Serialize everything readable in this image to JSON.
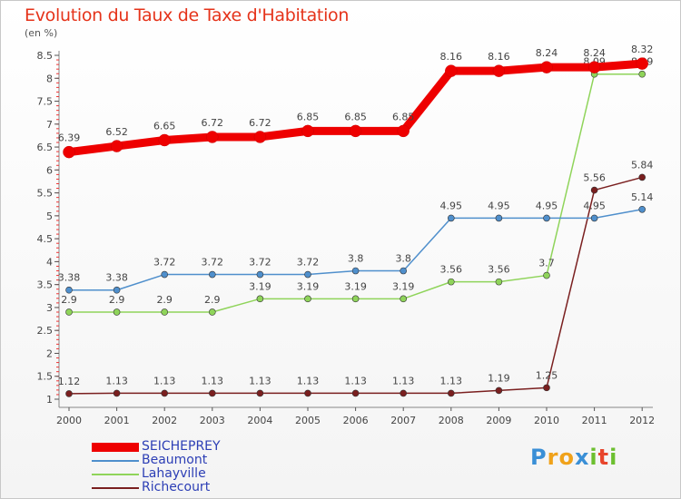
{
  "chart_data": {
    "type": "line",
    "title": "Evolution du Taux de Taxe d'Habitation",
    "unit_label": "(en %)",
    "x": [
      "2000",
      "2001",
      "2002",
      "2003",
      "2004",
      "2005",
      "2006",
      "2007",
      "2008",
      "2009",
      "2010",
      "2011",
      "2012"
    ],
    "y_ticks": [
      "1",
      "1.5",
      "2",
      "2.5",
      "3",
      "3.5",
      "4",
      "4.5",
      "5",
      "5.5",
      "6",
      "6.5",
      "7",
      "7.5",
      "8",
      "8.5"
    ],
    "ylim": [
      1,
      8.5
    ],
    "grid": false,
    "legend_position": "bottom-left",
    "series": [
      {
        "name": "SEICHEPREY",
        "color": "#ee0000",
        "values": [
          6.39,
          6.52,
          6.65,
          6.72,
          6.72,
          6.85,
          6.85,
          6.85,
          8.16,
          8.16,
          8.24,
          8.24,
          8.32
        ],
        "labels": [
          "6.39",
          "6.52",
          "6.65",
          "6.72",
          "6.72",
          "6.85",
          "6.85",
          "6.85",
          "8.16",
          "8.16",
          "8.24",
          "8.24",
          "8.32"
        ]
      },
      {
        "name": "Beaumont",
        "color": "#4f8fcc",
        "values": [
          3.38,
          3.38,
          3.72,
          3.72,
          3.72,
          3.72,
          3.8,
          3.8,
          4.95,
          4.95,
          4.95,
          4.95,
          5.14
        ],
        "labels": [
          "3.38",
          "3.38",
          "3.72",
          "3.72",
          "3.72",
          "3.72",
          "3.8",
          "3.8",
          "4.95",
          "4.95",
          "4.95",
          "4.95",
          "5.14"
        ]
      },
      {
        "name": "Lahayville",
        "color": "#8fd45a",
        "values": [
          2.9,
          2.9,
          2.9,
          2.9,
          3.19,
          3.19,
          3.19,
          3.19,
          3.56,
          3.56,
          3.7,
          8.09,
          8.09
        ],
        "labels": [
          "2.9",
          "2.9",
          "2.9",
          "2.9",
          "3.19",
          "3.19",
          "3.19",
          "3.19",
          "3.56",
          "3.56",
          "3.7",
          "8.09",
          "8.09"
        ]
      },
      {
        "name": "Richecourt",
        "color": "#7a1f1f",
        "values": [
          1.12,
          1.13,
          1.13,
          1.13,
          1.13,
          1.13,
          1.13,
          1.13,
          1.13,
          1.19,
          1.25,
          5.56,
          5.84
        ],
        "labels": [
          "1.12",
          "1.13",
          "1.13",
          "1.13",
          "1.13",
          "1.13",
          "1.13",
          "1.13",
          "1.13",
          "1.19",
          "1.25",
          "5.56",
          "5.84"
        ]
      }
    ]
  },
  "logo": {
    "letters": [
      "P",
      "r",
      "o",
      "x",
      "i",
      "t",
      "i"
    ],
    "colors": [
      "#3a8fd6",
      "#f0a21b",
      "#f0a21b",
      "#3a8fd6",
      "#6cbf2f",
      "#e8452c",
      "#6cbf2f"
    ]
  }
}
